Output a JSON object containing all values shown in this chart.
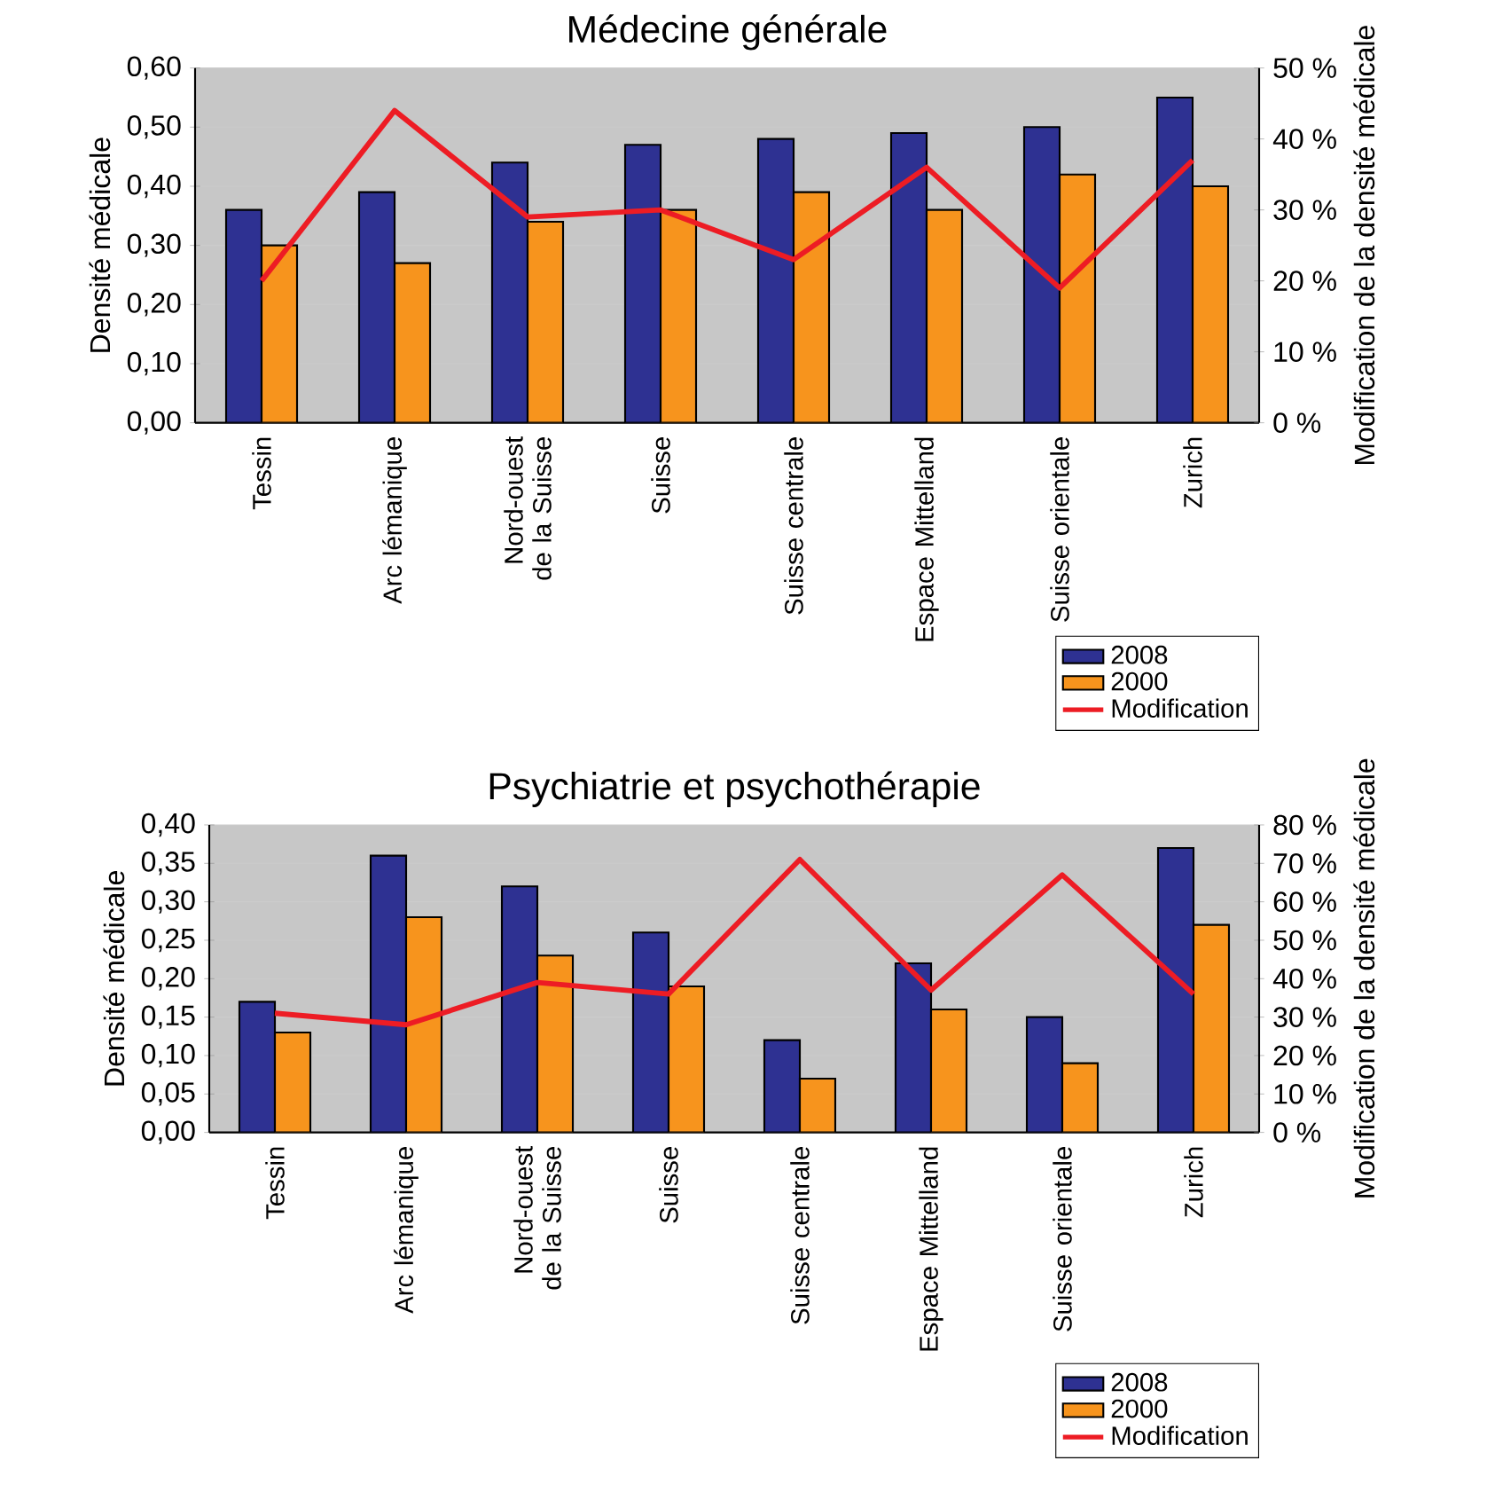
{
  "chart_data": [
    {
      "type": "bar",
      "title": "Médecine générale",
      "ylabel": "Densité médicale",
      "y2label": "Modification de la densité médicale",
      "categories": [
        "Tessin",
        "Arc lémanique",
        "Nord-ouest de la Suisse",
        "Suisse",
        "Suisse centrale",
        "Espace Mittelland",
        "Suisse orientale",
        "Zurich"
      ],
      "series": [
        {
          "name": "2008",
          "color": "#2e3192",
          "values": [
            0.36,
            0.39,
            0.44,
            0.47,
            0.48,
            0.49,
            0.5,
            0.55
          ]
        },
        {
          "name": "2000",
          "color": "#f7941d",
          "values": [
            0.3,
            0.27,
            0.34,
            0.36,
            0.39,
            0.36,
            0.42,
            0.4
          ]
        },
        {
          "name": "Modification",
          "type": "line",
          "axis": "y2",
          "color": "#ed1c24",
          "values": [
            20,
            44,
            29,
            30,
            23,
            36,
            19,
            37
          ]
        }
      ],
      "ylim": [
        0,
        0.6
      ],
      "yticks": [
        {
          "value": 0,
          "label": "0,00"
        },
        {
          "value": 0.1,
          "label": "0,10"
        },
        {
          "value": 0.2,
          "label": "0,20"
        },
        {
          "value": 0.3,
          "label": "0,30"
        },
        {
          "value": 0.4,
          "label": "0,40"
        },
        {
          "value": 0.5,
          "label": "0,50"
        },
        {
          "value": 0.6,
          "label": "0,60"
        }
      ],
      "y2lim": [
        0,
        50
      ],
      "y2ticks": [
        {
          "value": 0,
          "label": "0 %"
        },
        {
          "value": 10,
          "label": "10 %"
        },
        {
          "value": 20,
          "label": "20 %"
        },
        {
          "value": 30,
          "label": "30 %"
        },
        {
          "value": 40,
          "label": "40 %"
        },
        {
          "value": 50,
          "label": "50 %"
        }
      ],
      "grid": "y",
      "legend": "bottom right"
    },
    {
      "type": "bar",
      "title": "Psychiatrie et psychothérapie",
      "ylabel": "Densité médicale",
      "y2label": "Modification de la densité médicale",
      "categories": [
        "Tessin",
        "Arc lémanique",
        "Nord-ouest de la Suisse",
        "Suisse",
        "Suisse centrale",
        "Espace Mittelland",
        "Suisse orientale",
        "Zurich"
      ],
      "series": [
        {
          "name": "2008",
          "color": "#2e3192",
          "values": [
            0.17,
            0.36,
            0.32,
            0.26,
            0.12,
            0.22,
            0.15,
            0.37
          ]
        },
        {
          "name": "2000",
          "color": "#f7941d",
          "values": [
            0.13,
            0.28,
            0.23,
            0.19,
            0.07,
            0.16,
            0.09,
            0.27
          ]
        },
        {
          "name": "Modification",
          "type": "line",
          "axis": "y2",
          "color": "#ed1c24",
          "values": [
            31,
            28,
            39,
            36,
            71,
            37,
            67,
            36
          ]
        }
      ],
      "ylim": [
        0,
        0.4
      ],
      "yticks": [
        {
          "value": 0,
          "label": "0,00"
        },
        {
          "value": 0.05,
          "label": "0,05"
        },
        {
          "value": 0.1,
          "label": "0,10"
        },
        {
          "value": 0.15,
          "label": "0,15"
        },
        {
          "value": 0.2,
          "label": "0,20"
        },
        {
          "value": 0.25,
          "label": "0,25"
        },
        {
          "value": 0.3,
          "label": "0,30"
        },
        {
          "value": 0.35,
          "label": "0,35"
        },
        {
          "value": 0.4,
          "label": "0,40"
        }
      ],
      "y2lim": [
        0,
        80
      ],
      "y2ticks": [
        {
          "value": 0,
          "label": "0 %"
        },
        {
          "value": 10,
          "label": "10 %"
        },
        {
          "value": 20,
          "label": "20 %"
        },
        {
          "value": 30,
          "label": "30 %"
        },
        {
          "value": 40,
          "label": "40 %"
        },
        {
          "value": 50,
          "label": "50 %"
        },
        {
          "value": 60,
          "label": "60 %"
        },
        {
          "value": 70,
          "label": "70 %"
        },
        {
          "value": 80,
          "label": "80 %"
        }
      ],
      "grid": "y",
      "legend": "bottom right"
    }
  ]
}
